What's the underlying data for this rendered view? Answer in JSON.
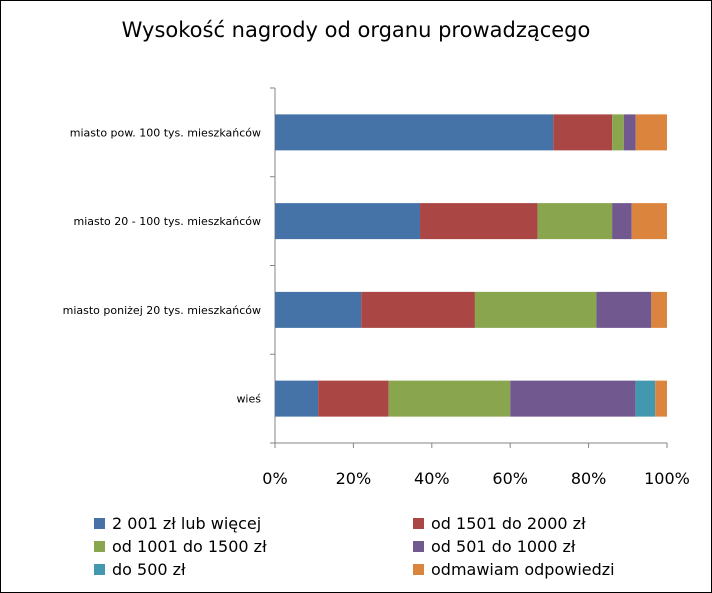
{
  "chart_data": {
    "type": "bar",
    "orientation": "horizontal",
    "stacked": "percent",
    "title": "Wysokość nagrody od organu prowadzącego",
    "categories": [
      "miasto pow. 100 tys. mieszkańców",
      "miasto 20 - 100 tys. mieszkańców",
      "miasto poniżej 20 tys. mieszkańców",
      "wieś"
    ],
    "series": [
      {
        "name": "2 001 zł lub więcej",
        "color": "#4573A7",
        "values": [
          71,
          37,
          22,
          11
        ]
      },
      {
        "name": "od 1501 do 2000 zł",
        "color": "#AA4644",
        "values": [
          15,
          30,
          29,
          18
        ]
      },
      {
        "name": "od 1001 do 1500 zł",
        "color": "#89A54E",
        "values": [
          3,
          19,
          31,
          31
        ]
      },
      {
        "name": "od 501 do 1000 zł",
        "color": "#71588F",
        "values": [
          3,
          5,
          14,
          32
        ]
      },
      {
        "name": "do 500 zł",
        "color": "#4198AF",
        "values": [
          0,
          0,
          0,
          5
        ]
      },
      {
        "name": "odmawiam odpowiedzi",
        "color": "#DB843D",
        "values": [
          8,
          9,
          4,
          3
        ]
      }
    ],
    "xticks": [
      "0%",
      "20%",
      "40%",
      "60%",
      "80%",
      "100%"
    ],
    "xlim": [
      0,
      100
    ],
    "grid": false,
    "legend_position": "bottom"
  }
}
